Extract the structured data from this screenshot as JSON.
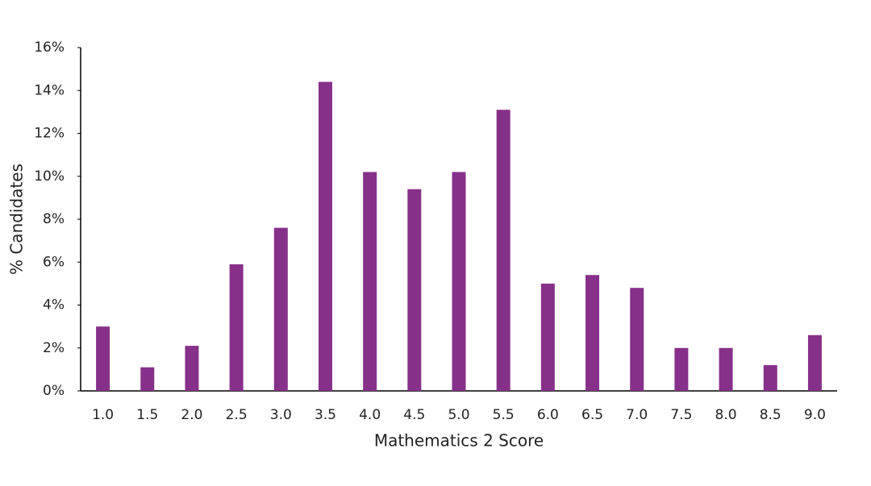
{
  "chart_data": {
    "type": "bar",
    "x_label": "Mathematics 2 Score",
    "y_label": "% Candidates",
    "categories": [
      "1.0",
      "1.5",
      "2.0",
      "2.5",
      "3.0",
      "3.5",
      "4.0",
      "4.5",
      "5.0",
      "5.5",
      "6.0",
      "6.5",
      "7.0",
      "7.5",
      "8.0",
      "8.5",
      "9.0"
    ],
    "values": [
      3.0,
      1.1,
      2.1,
      5.9,
      7.6,
      14.4,
      10.2,
      9.4,
      10.2,
      13.1,
      5.0,
      5.4,
      4.8,
      2.0,
      2.0,
      1.2,
      2.6
    ],
    "color": "#87308a",
    "ylim": [
      0,
      16
    ],
    "yticks": [
      {
        "value": 0,
        "label": "0%"
      },
      {
        "value": 2,
        "label": "2%"
      },
      {
        "value": 4,
        "label": "4%"
      },
      {
        "value": 6,
        "label": "6%"
      },
      {
        "value": 8,
        "label": "8%"
      },
      {
        "value": 10,
        "label": "10%"
      },
      {
        "value": 12,
        "label": "12%"
      },
      {
        "value": 14,
        "label": "14%"
      },
      {
        "value": 16,
        "label": "16%"
      }
    ],
    "grid": false
  }
}
